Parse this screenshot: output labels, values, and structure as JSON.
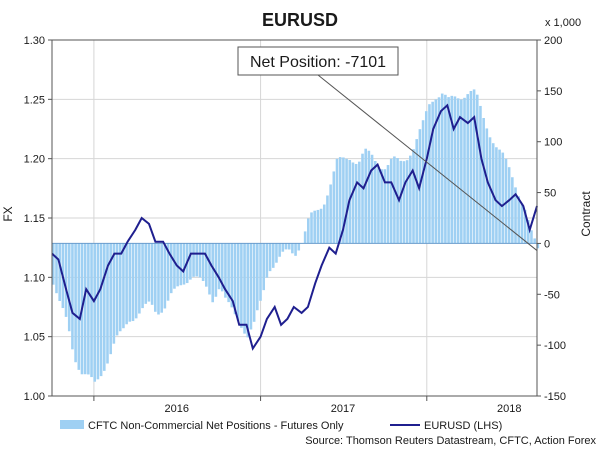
{
  "chart_data": {
    "type": "bar",
    "title": "EURUSD",
    "ylabel": "FX",
    "y2label": "Contract",
    "y2unit": "x 1,000",
    "ylim": [
      1.0,
      1.3
    ],
    "y2lim": [
      -150,
      200
    ],
    "yticks": [
      "1.00",
      "1.05",
      "1.10",
      "1.15",
      "1.20",
      "1.25",
      "1.30"
    ],
    "y2ticks": [
      "-150",
      "-100",
      "-50",
      "0",
      "50",
      "100",
      "150",
      "200"
    ],
    "xlim": [
      "2015-10-01",
      "2018-08-31"
    ],
    "xtick_labels": [
      {
        "label": "2016",
        "date": "2016-07-01"
      },
      {
        "label": "2017",
        "date": "2017-07-01"
      },
      {
        "label": "2018",
        "date": "2018-07-01"
      }
    ],
    "year_dividers": [
      "2016-01-01",
      "2017-01-01",
      "2018-01-01"
    ],
    "grid": true,
    "legend": [
      "CFTC Non-Commercial Net Positions - Futures Only",
      "EURUSD (LHS)"
    ],
    "annotation": "Net Position: -7101",
    "source": "Source: Thomson Reuters Datastream, CFTC, Action Forex",
    "series": [
      {
        "name": "CFTC Non-Commercial Net Positions - Futures Only",
        "axis": "right",
        "kind": "bar",
        "color": "#9fd0f3",
        "points": [
          [
            "2015-10-01",
            -37
          ],
          [
            "2015-10-15",
            -58
          ],
          [
            "2015-11-01",
            -80
          ],
          [
            "2015-11-15",
            -110
          ],
          [
            "2015-12-01",
            -125
          ],
          [
            "2015-12-15",
            -130
          ],
          [
            "2016-01-01",
            -140
          ],
          [
            "2016-01-15",
            -128
          ],
          [
            "2016-02-01",
            -110
          ],
          [
            "2016-02-15",
            -95
          ],
          [
            "2016-03-01",
            -88
          ],
          [
            "2016-03-15",
            -75
          ],
          [
            "2016-04-01",
            -70
          ],
          [
            "2016-04-15",
            -65
          ],
          [
            "2016-05-01",
            -60
          ],
          [
            "2016-05-15",
            -68
          ],
          [
            "2016-06-01",
            -62
          ],
          [
            "2016-06-15",
            -52
          ],
          [
            "2016-07-01",
            -45
          ],
          [
            "2016-07-15",
            -38
          ],
          [
            "2016-08-01",
            -30
          ],
          [
            "2016-08-15",
            -35
          ],
          [
            "2016-09-01",
            -45
          ],
          [
            "2016-09-15",
            -55
          ],
          [
            "2016-10-01",
            -40
          ],
          [
            "2016-10-15",
            -58
          ],
          [
            "2016-11-01",
            -70
          ],
          [
            "2016-11-15",
            -78
          ],
          [
            "2016-12-01",
            -90
          ],
          [
            "2016-12-15",
            -80
          ],
          [
            "2017-01-01",
            -55
          ],
          [
            "2017-01-15",
            -25
          ],
          [
            "2017-02-01",
            -18
          ],
          [
            "2017-02-15",
            -12
          ],
          [
            "2017-03-01",
            -8
          ],
          [
            "2017-03-15",
            -10
          ],
          [
            "2017-04-01",
            5
          ],
          [
            "2017-04-15",
            25
          ],
          [
            "2017-05-01",
            30
          ],
          [
            "2017-05-15",
            38
          ],
          [
            "2017-06-01",
            60
          ],
          [
            "2017-06-15",
            80
          ],
          [
            "2017-07-01",
            82
          ],
          [
            "2017-07-15",
            85
          ],
          [
            "2017-08-01",
            80
          ],
          [
            "2017-08-15",
            90
          ],
          [
            "2017-09-01",
            85
          ],
          [
            "2017-09-15",
            78
          ],
          [
            "2017-10-01",
            75
          ],
          [
            "2017-10-15",
            82
          ],
          [
            "2017-11-01",
            80
          ],
          [
            "2017-11-15",
            85
          ],
          [
            "2017-12-01",
            95
          ],
          [
            "2017-12-15",
            110
          ],
          [
            "2017-12-25",
            122
          ],
          [
            "2018-01-01",
            135
          ],
          [
            "2018-01-15",
            145
          ],
          [
            "2018-02-01",
            148
          ],
          [
            "2018-02-15",
            140
          ],
          [
            "2018-03-01",
            143
          ],
          [
            "2018-03-15",
            145
          ],
          [
            "2018-04-01",
            150
          ],
          [
            "2018-04-15",
            148
          ],
          [
            "2018-05-01",
            125
          ],
          [
            "2018-05-15",
            110
          ],
          [
            "2018-06-01",
            95
          ],
          [
            "2018-06-15",
            85
          ],
          [
            "2018-07-01",
            70
          ],
          [
            "2018-07-15",
            55
          ],
          [
            "2018-08-01",
            35
          ],
          [
            "2018-08-15",
            10
          ],
          [
            "2018-08-31",
            -7
          ]
        ]
      },
      {
        "name": "EURUSD (LHS)",
        "axis": "left",
        "kind": "line",
        "color": "#1f1f8f",
        "points": [
          [
            "2015-10-01",
            1.12
          ],
          [
            "2015-10-15",
            1.115
          ],
          [
            "2015-11-01",
            1.09
          ],
          [
            "2015-11-15",
            1.07
          ],
          [
            "2015-12-01",
            1.065
          ],
          [
            "2015-12-15",
            1.09
          ],
          [
            "2016-01-01",
            1.08
          ],
          [
            "2016-01-15",
            1.09
          ],
          [
            "2016-02-01",
            1.11
          ],
          [
            "2016-02-15",
            1.12
          ],
          [
            "2016-03-01",
            1.12
          ],
          [
            "2016-03-15",
            1.13
          ],
          [
            "2016-04-01",
            1.14
          ],
          [
            "2016-04-15",
            1.15
          ],
          [
            "2016-05-01",
            1.145
          ],
          [
            "2016-05-15",
            1.13
          ],
          [
            "2016-06-01",
            1.13
          ],
          [
            "2016-06-15",
            1.12
          ],
          [
            "2016-07-01",
            1.11
          ],
          [
            "2016-07-15",
            1.105
          ],
          [
            "2016-08-01",
            1.12
          ],
          [
            "2016-08-15",
            1.12
          ],
          [
            "2016-09-01",
            1.12
          ],
          [
            "2016-09-15",
            1.11
          ],
          [
            "2016-10-01",
            1.1
          ],
          [
            "2016-10-15",
            1.09
          ],
          [
            "2016-11-01",
            1.08
          ],
          [
            "2016-11-15",
            1.06
          ],
          [
            "2016-12-01",
            1.06
          ],
          [
            "2016-12-15",
            1.04
          ],
          [
            "2017-01-01",
            1.05
          ],
          [
            "2017-01-15",
            1.065
          ],
          [
            "2017-02-01",
            1.075
          ],
          [
            "2017-02-15",
            1.06
          ],
          [
            "2017-03-01",
            1.065
          ],
          [
            "2017-03-15",
            1.075
          ],
          [
            "2017-04-01",
            1.07
          ],
          [
            "2017-04-15",
            1.075
          ],
          [
            "2017-05-01",
            1.095
          ],
          [
            "2017-05-15",
            1.11
          ],
          [
            "2017-06-01",
            1.125
          ],
          [
            "2017-06-15",
            1.12
          ],
          [
            "2017-07-01",
            1.14
          ],
          [
            "2017-07-15",
            1.165
          ],
          [
            "2017-08-01",
            1.18
          ],
          [
            "2017-08-15",
            1.175
          ],
          [
            "2017-09-01",
            1.19
          ],
          [
            "2017-09-15",
            1.195
          ],
          [
            "2017-10-01",
            1.18
          ],
          [
            "2017-10-15",
            1.18
          ],
          [
            "2017-11-01",
            1.165
          ],
          [
            "2017-11-15",
            1.18
          ],
          [
            "2017-12-01",
            1.19
          ],
          [
            "2017-12-15",
            1.175
          ],
          [
            "2018-01-01",
            1.2
          ],
          [
            "2018-01-15",
            1.225
          ],
          [
            "2018-02-01",
            1.24
          ],
          [
            "2018-02-15",
            1.245
          ],
          [
            "2018-03-01",
            1.225
          ],
          [
            "2018-03-15",
            1.235
          ],
          [
            "2018-04-01",
            1.23
          ],
          [
            "2018-04-15",
            1.235
          ],
          [
            "2018-05-01",
            1.2
          ],
          [
            "2018-05-15",
            1.18
          ],
          [
            "2018-06-01",
            1.165
          ],
          [
            "2018-06-15",
            1.16
          ],
          [
            "2018-07-01",
            1.165
          ],
          [
            "2018-07-15",
            1.17
          ],
          [
            "2018-08-01",
            1.16
          ],
          [
            "2018-08-15",
            1.14
          ],
          [
            "2018-08-31",
            1.16
          ]
        ]
      }
    ]
  }
}
